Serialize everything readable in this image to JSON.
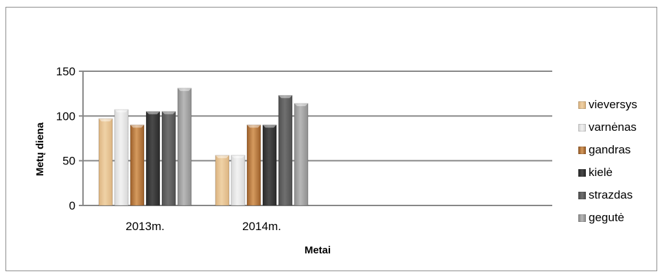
{
  "chart_data": {
    "type": "bar",
    "title": "",
    "xlabel": "Metai",
    "ylabel": "Metų diena",
    "categories": [
      "2013m.",
      "2014m."
    ],
    "ylim": [
      0,
      150
    ],
    "yticks": [
      0,
      50,
      100,
      150
    ],
    "grid": true,
    "legend_position": "right",
    "series": [
      {
        "name": "vieversys",
        "values": [
          97,
          56
        ],
        "color": "#efd2a6",
        "color2": "#dcb481"
      },
      {
        "name": "varnėnas",
        "values": [
          107,
          56
        ],
        "color": "#f2f2f2",
        "color2": "#d7d7d7"
      },
      {
        "name": "gandras",
        "values": [
          90,
          90
        ],
        "color": "#d59a5e",
        "color2": "#9c5f2a"
      },
      {
        "name": "kielė",
        "values": [
          105,
          90
        ],
        "color": "#4a4a4a",
        "color2": "#2a2a2a"
      },
      {
        "name": "strazdas",
        "values": [
          105,
          123
        ],
        "color": "#707070",
        "color2": "#505050"
      },
      {
        "name": "gegutė",
        "values": [
          131,
          114
        ],
        "color": "#b8b8b8",
        "color2": "#8e8e8e"
      }
    ]
  }
}
